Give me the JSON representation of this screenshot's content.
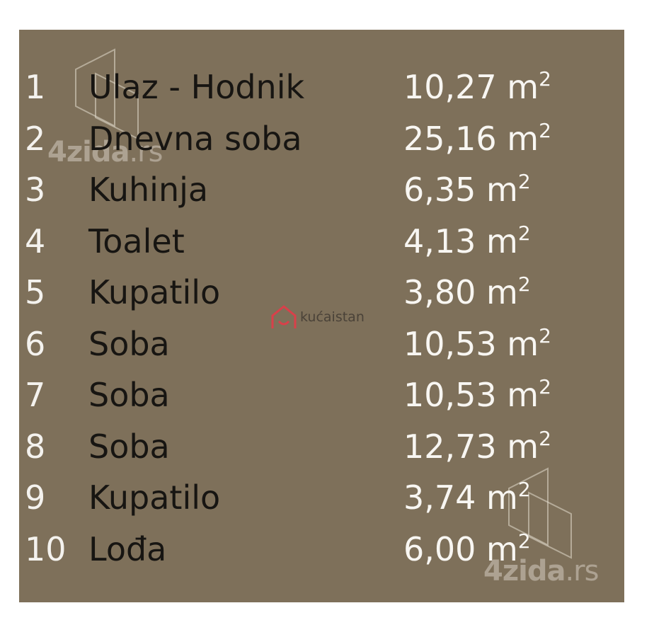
{
  "rooms": [
    {
      "no": "1",
      "name": "Ulaz - Hodnik",
      "area": "10,27 m",
      "unit_exp": "2"
    },
    {
      "no": "2",
      "name": "Dnevna soba",
      "area": "25,16 m",
      "unit_exp": "2"
    },
    {
      "no": "3",
      "name": "Kuhinja",
      "area": "6,35 m",
      "unit_exp": "2"
    },
    {
      "no": "4",
      "name": "Toalet",
      "area": "4,13 m",
      "unit_exp": "2"
    },
    {
      "no": "5",
      "name": "Kupatilo",
      "area": "3,80 m",
      "unit_exp": "2"
    },
    {
      "no": "6",
      "name": "Soba",
      "area": "10,53 m",
      "unit_exp": "2"
    },
    {
      "no": "7",
      "name": "Soba",
      "area": "10,53 m",
      "unit_exp": "2"
    },
    {
      "no": "8",
      "name": "Soba",
      "area": "12,73 m",
      "unit_exp": "2"
    },
    {
      "no": "9",
      "name": "Kupatilo",
      "area": "3,74 m",
      "unit_exp": "2"
    },
    {
      "no": "10",
      "name": "Lođa",
      "area": "6,00 m",
      "unit_exp": "2"
    }
  ],
  "watermarks": {
    "brand1_main": "4zida",
    "brand1_tld": ".rs",
    "brand2": "kućaistan"
  },
  "colors": {
    "background": "#7e705a",
    "name_text": "#171512",
    "number_text": "#f4f2ee",
    "kucaistan_red": "#d9404a"
  }
}
